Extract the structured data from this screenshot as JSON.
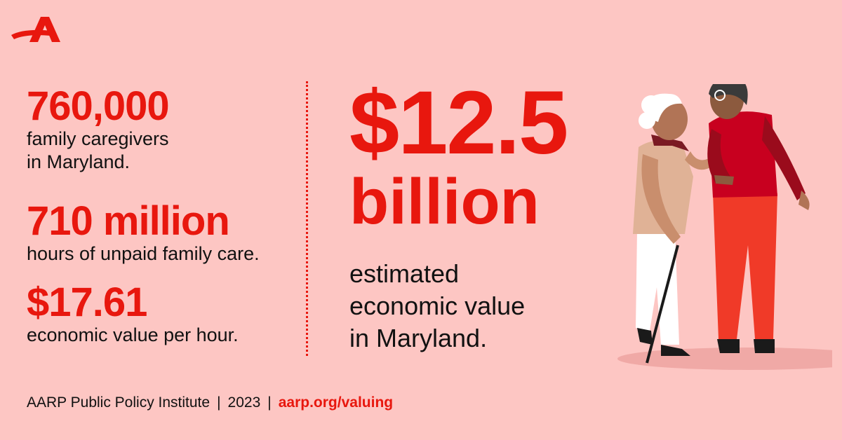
{
  "brand": {
    "logo_icon": "aarp-a-logo-icon",
    "accent": "#e8170e",
    "background": "#fdc6c3"
  },
  "stats": [
    {
      "value": "760,000",
      "lines": [
        "family caregivers",
        "in Maryland."
      ]
    },
    {
      "value": "710 million",
      "lines": [
        "hours of unpaid family care."
      ]
    },
    {
      "value": "$17.61",
      "lines": [
        "economic value per hour."
      ]
    }
  ],
  "hero": {
    "value": "$12.5",
    "unit": "billion",
    "lines": [
      "estimated",
      "economic value",
      "in Maryland."
    ]
  },
  "footer": {
    "source": "AARP Public Policy Institute",
    "year": "2023",
    "link": "aarp.org/valuing"
  },
  "illustration": {
    "icon": "caregiver-with-elder-illustration"
  }
}
